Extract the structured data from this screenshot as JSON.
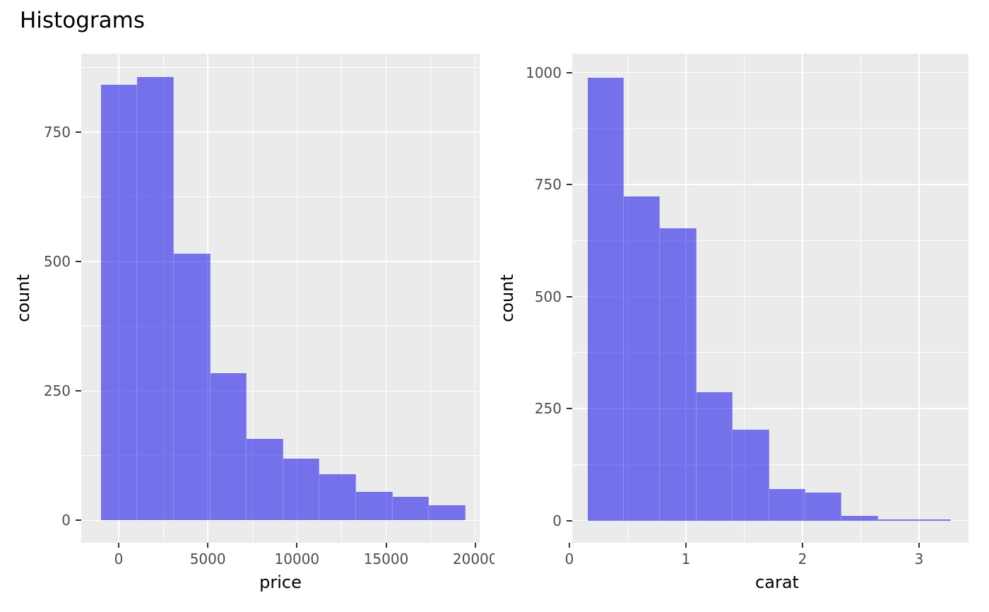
{
  "title": "Histograms",
  "colors": {
    "bar_fill": "rgba(18,13,234,0.55)",
    "bar_fill_over_panel_hex": "#7573EA",
    "panel_background": "#EBEBEB",
    "gridline": "#FFFFFF",
    "tick_label": "#4D4D4D",
    "axis_title": "#000000",
    "tick_mark": "#333333",
    "title": "#000000",
    "figure_background": "#FFFFFF"
  },
  "chart_data": [
    {
      "type": "bar",
      "subtype": "histogram",
      "xlabel": "price",
      "ylabel": "count",
      "bin_start": -1000,
      "bin_width": 2045,
      "counts": [
        841,
        857,
        515,
        284,
        158,
        120,
        89,
        55,
        46,
        30
      ],
      "x_ticks_major": [
        0,
        5000,
        10000,
        15000,
        20000
      ],
      "x_tick_labels": [
        "0",
        "5000",
        "10000",
        "15000",
        "20000"
      ],
      "x_ticks_minor": [
        2500,
        7500,
        12500,
        17500
      ],
      "y_ticks_major": [
        0,
        250,
        500,
        750
      ],
      "y_tick_labels": [
        "0",
        "250",
        "500",
        "750"
      ],
      "y_ticks_minor": [
        125,
        375,
        625,
        875
      ],
      "xlim": [
        -2100,
        20250
      ],
      "ylim": [
        -43,
        902
      ],
      "grid": true,
      "legend": false
    },
    {
      "type": "bar",
      "subtype": "histogram",
      "xlabel": "carat",
      "ylabel": "count",
      "bin_start": 0.155,
      "bin_width": 0.3115,
      "counts": [
        989,
        723,
        653,
        287,
        203,
        70,
        62,
        11,
        2,
        2
      ],
      "x_ticks_major": [
        0,
        1,
        2,
        3
      ],
      "x_tick_labels": [
        "0",
        "1",
        "2",
        "3"
      ],
      "x_ticks_minor": [
        0.5,
        1.5,
        2.5
      ],
      "y_ticks_major": [
        0,
        250,
        500,
        750,
        1000
      ],
      "y_tick_labels": [
        "0",
        "250",
        "500",
        "750",
        "1000"
      ],
      "y_ticks_minor": [
        125,
        375,
        625,
        875
      ],
      "xlim": [
        0.024,
        3.424
      ],
      "ylim": [
        -49.5,
        1042.4
      ],
      "grid": true,
      "legend": false
    }
  ]
}
